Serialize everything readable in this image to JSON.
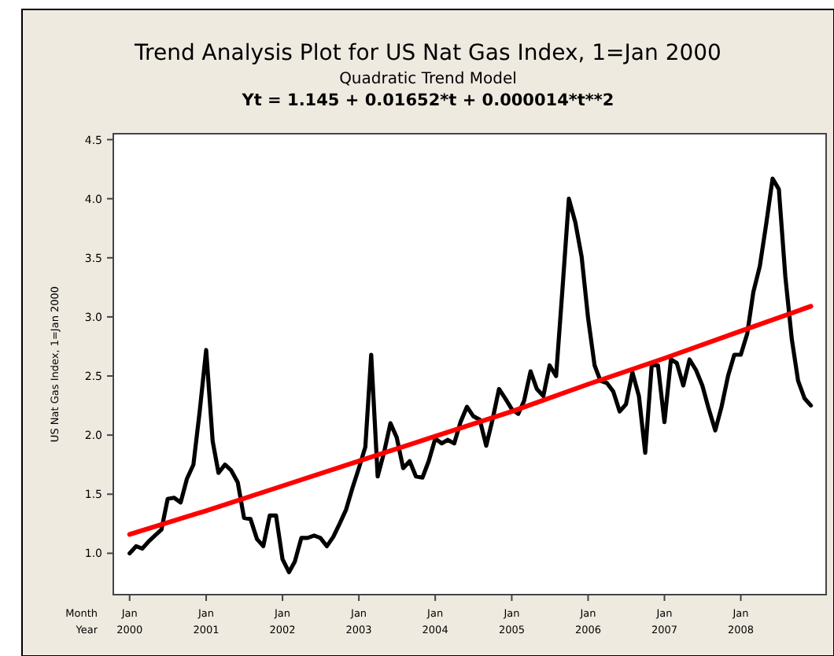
{
  "chart_data": {
    "type": "line",
    "title": "Trend Analysis Plot for US Nat Gas Index, 1=Jan 2000",
    "subtitle": "Quadratic Trend Model",
    "annotations": [
      "Yt = 1.145 + 0.01652*t + 0.000014*t**2"
    ],
    "xlabel": "Month\nYear",
    "ylabel": "US Nat Gas Index, 1=Jan 2000",
    "x": [
      "2000-01",
      "2000-02",
      "2000-03",
      "2000-04",
      "2000-05",
      "2000-06",
      "2000-07",
      "2000-08",
      "2000-09",
      "2000-10",
      "2000-11",
      "2000-12",
      "2001-01",
      "2001-02",
      "2001-03",
      "2001-04",
      "2001-05",
      "2001-06",
      "2001-07",
      "2001-08",
      "2001-09",
      "2001-10",
      "2001-11",
      "2001-12",
      "2002-01",
      "2002-02",
      "2002-03",
      "2002-04",
      "2002-05",
      "2002-06",
      "2002-07",
      "2002-08",
      "2002-09",
      "2002-10",
      "2002-11",
      "2002-12",
      "2003-01",
      "2003-02",
      "2003-03",
      "2003-04",
      "2003-05",
      "2003-06",
      "2003-07",
      "2003-08",
      "2003-09",
      "2003-10",
      "2003-11",
      "2003-12",
      "2004-01",
      "2004-02",
      "2004-03",
      "2004-04",
      "2004-05",
      "2004-06",
      "2004-07",
      "2004-08",
      "2004-09",
      "2004-10",
      "2004-11",
      "2004-12",
      "2005-01",
      "2005-02",
      "2005-03",
      "2005-04",
      "2005-05",
      "2005-06",
      "2005-07",
      "2005-08",
      "2005-09",
      "2005-10",
      "2005-11",
      "2005-12",
      "2006-01",
      "2006-02",
      "2006-03",
      "2006-04",
      "2006-05",
      "2006-06",
      "2006-07",
      "2006-08",
      "2006-09",
      "2006-10",
      "2006-11",
      "2006-12",
      "2007-01",
      "2007-02",
      "2007-03",
      "2007-04",
      "2007-05",
      "2007-06",
      "2007-07",
      "2007-08",
      "2007-09",
      "2007-10",
      "2007-11",
      "2007-12",
      "2008-01",
      "2008-02",
      "2008-03",
      "2008-04",
      "2008-05",
      "2008-06",
      "2008-07",
      "2008-08",
      "2008-09",
      "2008-10",
      "2008-11",
      "2008-12"
    ],
    "series": [
      {
        "color": "#000000",
        "values": [
          1.0,
          1.06,
          1.04,
          1.1,
          1.15,
          1.2,
          1.46,
          1.47,
          1.43,
          1.63,
          1.75,
          2.2,
          2.72,
          1.95,
          1.68,
          1.75,
          1.7,
          1.6,
          1.3,
          1.29,
          1.12,
          1.06,
          1.32,
          1.32,
          0.95,
          0.84,
          0.93,
          1.13,
          1.13,
          1.15,
          1.13,
          1.06,
          1.14,
          1.25,
          1.37,
          1.55,
          1.72,
          1.9,
          2.68,
          1.65,
          1.85,
          2.1,
          1.98,
          1.72,
          1.78,
          1.65,
          1.64,
          1.78,
          1.97,
          1.93,
          1.96,
          1.93,
          2.11,
          2.24,
          2.16,
          2.13,
          1.91,
          2.13,
          2.39,
          2.31,
          2.22,
          2.18,
          2.29,
          2.54,
          2.39,
          2.33,
          2.59,
          2.5,
          3.25,
          4.0,
          3.8,
          3.51,
          2.99,
          2.59,
          2.46,
          2.44,
          2.37,
          2.2,
          2.26,
          2.53,
          2.33,
          1.85,
          2.59,
          2.59,
          2.11,
          2.64,
          2.61,
          2.42,
          2.64,
          2.55,
          2.42,
          2.22,
          2.04,
          2.24,
          2.5,
          2.68,
          2.68,
          2.86,
          3.21,
          3.43,
          3.78,
          4.17,
          4.08,
          3.34,
          2.81,
          2.46,
          2.31,
          2.25
        ]
      },
      {
        "color": "#ff0000",
        "x": [
          "2000-01",
          "2001-01",
          "2002-01",
          "2003-01",
          "2004-01",
          "2005-01",
          "2006-01",
          "2007-01",
          "2008-01",
          "2008-12"
        ],
        "values": [
          1.16,
          1.36,
          1.57,
          1.78,
          1.99,
          2.2,
          2.43,
          2.65,
          2.88,
          3.09
        ]
      }
    ],
    "xlim": [
      "1999-10-15",
      "2009-02-12"
    ],
    "xticks": [
      {
        "value": "2000-01",
        "label": "Jan\n2000"
      },
      {
        "value": "2001-01",
        "label": "Jan\n2001"
      },
      {
        "value": "2002-01",
        "label": "Jan\n2002"
      },
      {
        "value": "2003-01",
        "label": "Jan\n2003"
      },
      {
        "value": "2004-01",
        "label": "Jan\n2004"
      },
      {
        "value": "2005-01",
        "label": "Jan\n2005"
      },
      {
        "value": "2006-01",
        "label": "Jan\n2006"
      },
      {
        "value": "2007-01",
        "label": "Jan\n2007"
      },
      {
        "value": "2008-01",
        "label": "Jan\n2008"
      }
    ],
    "ylim": [
      0.65,
      4.55
    ],
    "yticks": [
      {
        "value": 1,
        "label": "1.0"
      },
      {
        "value": 1.5,
        "label": "1.5"
      },
      {
        "value": 2,
        "label": "2.0"
      },
      {
        "value": 2.5,
        "label": "2.5"
      },
      {
        "value": 3,
        "label": "3.0"
      },
      {
        "value": 3.5,
        "label": "3.5"
      },
      {
        "value": 4,
        "label": "4.0"
      },
      {
        "value": 4.5,
        "label": "4.5"
      }
    ],
    "marker": "none",
    "line_style": "solid"
  }
}
